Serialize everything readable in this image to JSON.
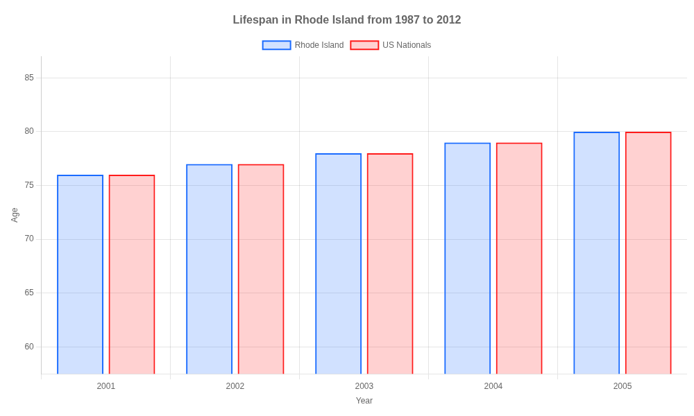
{
  "chart_data": {
    "type": "bar",
    "title": "Lifespan in Rhode Island from 1987 to 2012",
    "xlabel": "Year",
    "ylabel": "Age",
    "categories": [
      "2001",
      "2002",
      "2003",
      "2004",
      "2005"
    ],
    "series": [
      {
        "name": "Rhode Island",
        "color": "#1a6bff",
        "values": [
          76.0,
          77.0,
          78.0,
          79.0,
          80.0
        ]
      },
      {
        "name": "US Nationals",
        "color": "#ff1a1a",
        "values": [
          76.0,
          77.0,
          78.0,
          79.0,
          80.0
        ]
      }
    ],
    "ylim": [
      57.5,
      87
    ],
    "yticks": [
      60,
      65,
      70,
      75,
      80,
      85
    ],
    "grid": true,
    "legend": "top"
  }
}
